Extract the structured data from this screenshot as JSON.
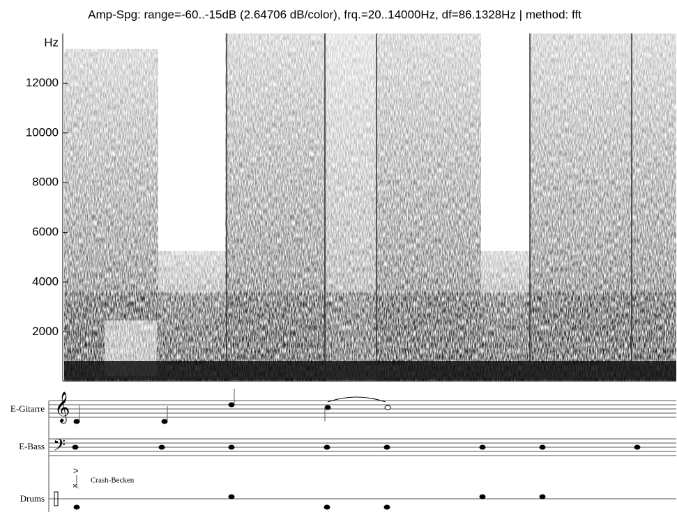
{
  "spectrogram": {
    "title": "Amp-Spg: range=-60..-15dB (2.64706 dB/color), frq.=20..14000Hz, df=86.1328Hz | method: fft",
    "y_unit": "Hz",
    "ylim": [
      20,
      14000
    ],
    "yticks": [
      2000,
      4000,
      6000,
      8000,
      10000,
      12000
    ]
  },
  "score": {
    "staves": [
      {
        "name": "E-Gitarre"
      },
      {
        "name": "E-Bass"
      },
      {
        "name": "Drums"
      }
    ],
    "annotation": "Crash-Becken"
  }
}
